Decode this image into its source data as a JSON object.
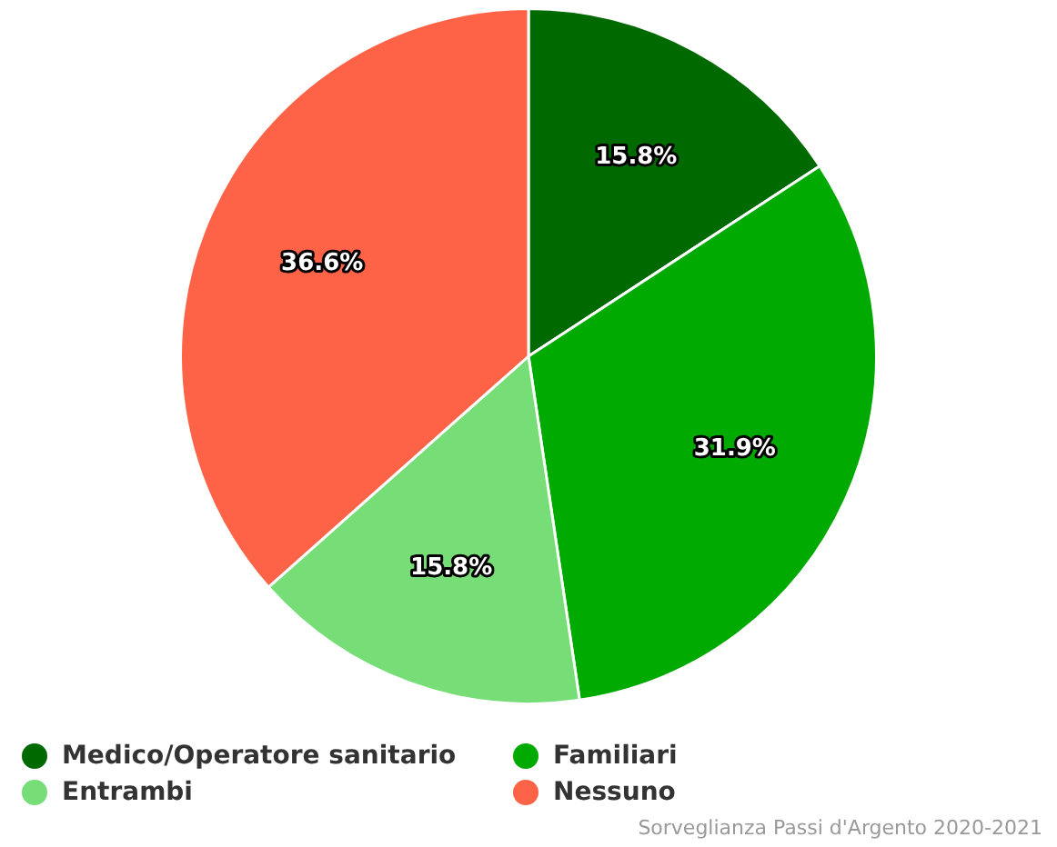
{
  "chart_data": {
    "type": "pie",
    "categories": [
      "Medico/Operatore sanitario",
      "Familiari",
      "Entrambi",
      "Nessuno"
    ],
    "values": [
      15.8,
      31.9,
      15.8,
      36.6
    ],
    "colors": [
      "#006a00",
      "#00aa00",
      "#77dd77",
      "#ff6347"
    ],
    "value_labels": [
      "15.8%",
      "31.9%",
      "15.8%",
      "36.6%"
    ],
    "legend": "bottom",
    "annotations": [
      "Sorveglianza Passi d'Argento 2020-2021"
    ]
  }
}
